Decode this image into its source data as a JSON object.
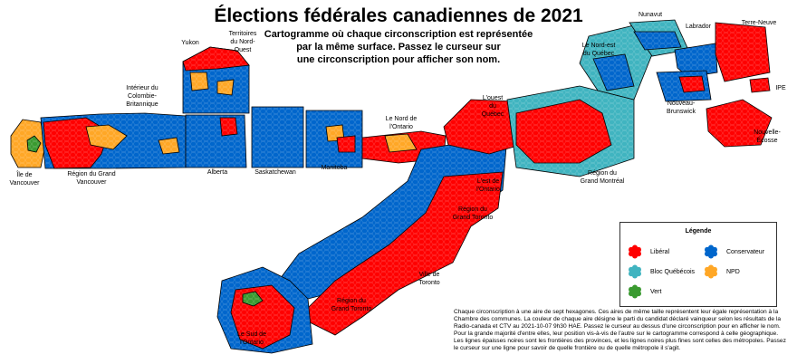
{
  "title": "Élections fédérales canadiennes de 2021",
  "subtitle": [
    "Cartogramme où chaque circonscription est représentée",
    "par la même surface.  Passez le curseur sur",
    "une circonscription pour afficher son nom."
  ],
  "colors": {
    "liberal": "#ff0000",
    "conservateur": "#0066cc",
    "bloc": "#40b4c0",
    "npd": "#ffa726",
    "vert": "#3a9a30"
  },
  "regions": {
    "yukon": "Yukon",
    "tno": [
      "Territoires",
      "du Nord-",
      "Ouest"
    ],
    "nunavut": "Nunavut",
    "labrador": "Labrador",
    "terre_neuve": "Terre-Neuve",
    "ne_quebec": [
      "Le Nord-est",
      "du Québec"
    ],
    "ipe": "IPE",
    "nb": [
      "Nouveau-",
      "Brunswick"
    ],
    "ne": [
      "Nouvelle-",
      "Écosse"
    ],
    "interieur_cb": [
      "Intérieur du",
      "Colombie-",
      "Britannique"
    ],
    "nord_ontario": [
      "Le Nord de",
      "l'Ontario"
    ],
    "ouest_quebec": [
      "L'ouest",
      "du",
      "Québec"
    ],
    "ile_vancouver": [
      "Île de",
      "Vancouver"
    ],
    "grand_vancouver": [
      "Région du Grand",
      "Vancouver"
    ],
    "alberta": "Alberta",
    "saskatchewan": "Saskatchewan",
    "manitoba": "Manitoba",
    "grand_montreal": [
      "Région du",
      "Grand Montréal"
    ],
    "est_ontario": [
      "L'est de",
      "l'Ontario"
    ],
    "grand_toronto_n": [
      "Région du",
      "Grand Toronto"
    ],
    "ville_toronto": [
      "Ville de",
      "Toronto"
    ],
    "grand_toronto_s": [
      "Région du",
      "Grand Toronto"
    ],
    "sud_ontario": [
      "Le Sud de",
      "l'Ontario"
    ]
  },
  "legend": {
    "title": "Légende",
    "items": [
      {
        "party": "liberal",
        "label": "Libéral"
      },
      {
        "party": "conservateur",
        "label": "Conservateur"
      },
      {
        "party": "bloc",
        "label": "Bloc Québécois"
      },
      {
        "party": "npd",
        "label": "NPD"
      },
      {
        "party": "vert",
        "label": "Vert"
      }
    ]
  },
  "description": "Chaque circonscription à une aire de sept hexagones.  Ces aires de même taille représentent leur égale représentation à la Chambre des communes.  La couleur de chaque aire désigne le parti du candidat déclaré vainqueur selon les résultats de la Radio-canada et CTV au 2021-10-07 9h30 HAE.  Passez le curseur au dessus d'une circonscription pour en afficher le nom.  Pour la grande majorité d'entre elles, leur position vis-à-vis de l'autre sur le cartogramme correspond à celle géographique. Les lignes épaisses noires sont les frontières des provinces, et les lignes noires plus fines sont celles des métropoles.  Passez le curseur sur une ligne pour savoir de quelle frontière ou de quelle métropole il s'agit."
}
